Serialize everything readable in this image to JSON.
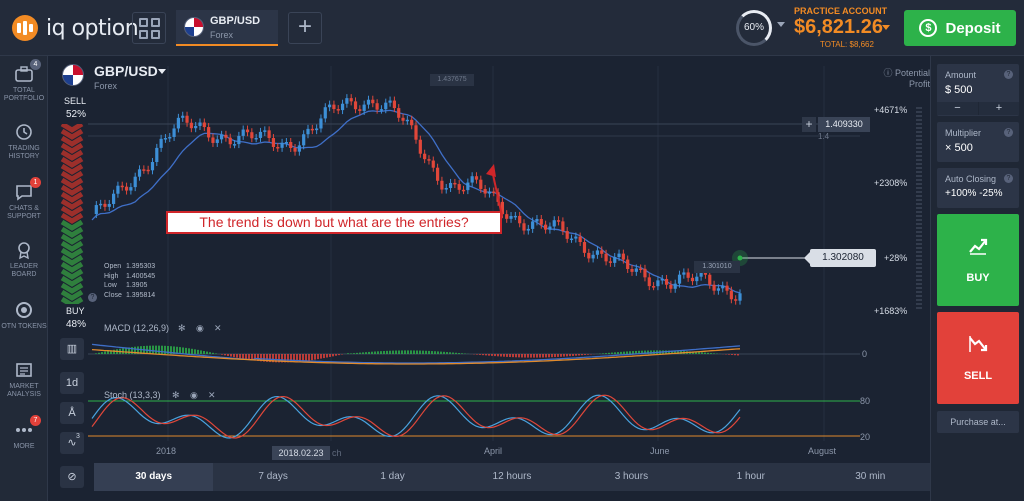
{
  "app": {
    "logo_text": "iq option"
  },
  "tabs": [
    {
      "name": "GBP/USD",
      "sub": "Forex"
    }
  ],
  "account": {
    "percent": "60%",
    "label": "PRACTICE ACCOUNT",
    "balance": "$6,821.26",
    "total": "TOTAL: $8,662",
    "deposit_label": "Deposit"
  },
  "sidebar": {
    "items": [
      {
        "label": "TOTAL PORTFOLIO",
        "icon": "briefcase-icon",
        "badge": "4"
      },
      {
        "label": "TRADING HISTORY",
        "icon": "history-icon",
        "badge": ""
      },
      {
        "label": "CHATS & SUPPORT",
        "icon": "chat-icon",
        "badge": "1"
      },
      {
        "label": "LEADER BOARD",
        "icon": "leaderboard-icon",
        "badge": ""
      },
      {
        "label": "OTN TOKENS",
        "icon": "token-icon",
        "badge": ""
      },
      {
        "label": "MARKET ANALYSIS",
        "icon": "news-icon",
        "badge": ""
      },
      {
        "label": "MORE",
        "icon": "more-icon",
        "badge": "7"
      }
    ]
  },
  "chart": {
    "pair": "GBP/USD",
    "category": "Forex",
    "sell_label": "SELL",
    "sell_pct": "52%",
    "buy_label": "BUY",
    "buy_pct": "48%",
    "potential_profit": "Potential Profit",
    "profit_levels": [
      "+4671%",
      "+2308%",
      "+28%",
      "+1683%"
    ],
    "price_current": "1.302080",
    "price_cursor": "1.409330",
    "cursor_axis_value": "1.4",
    "price_high": "1.437675",
    "price_low": "1.301010",
    "ohlc": {
      "open_label": "Open",
      "open": "1.395303",
      "high_label": "High",
      "high": "1.400545",
      "low_label": "Low",
      "low": "1.3905",
      "close_label": "Close",
      "close": "1.395814"
    },
    "annotation": "The trend is down but what are the entries?",
    "macd_label": "MACD (12,26,9)",
    "macd_zero": "0",
    "stoch_label": "Stoch (13,3,3)",
    "stoch_levels": [
      "80",
      "20"
    ],
    "x_labels": [
      "2018",
      "April",
      "June",
      "August"
    ],
    "date_tag": "2018.02.23",
    "date_tag_tail": "ch",
    "tool_badge": "3",
    "tool_1d": "1d"
  },
  "timeframes": [
    "30 days",
    "7 days",
    "1 day",
    "12 hours",
    "3 hours",
    "1 hour",
    "30 min"
  ],
  "trade": {
    "amount_label": "Amount",
    "amount_value": "$  500",
    "minus": "−",
    "plus": "+",
    "multiplier_label": "Multiplier",
    "multiplier_value": "× 500",
    "auto_label": "Auto Closing",
    "auto_value": "+100%  -25%",
    "buy": "BUY",
    "sell": "SELL",
    "purchase": "Purchase at..."
  },
  "colors": {
    "accent": "#f28b24",
    "buy": "#2db24a",
    "sell": "#e2413a",
    "candle_up": "#3d8fd6",
    "candle_down": "#e0473a"
  },
  "chart_data": {
    "type": "line",
    "title": "",
    "x": [
      "2018-01",
      "2018-02",
      "2018-03",
      "2018-04",
      "2018-05",
      "2018-06",
      "2018-07",
      "2018-08"
    ],
    "series": [
      {
        "values": [
          1.352,
          1.41,
          1.4,
          1.43,
          1.37,
          1.34,
          1.31,
          1.302
        ]
      }
    ],
    "xlabel": "",
    "ylabel": ""
  }
}
